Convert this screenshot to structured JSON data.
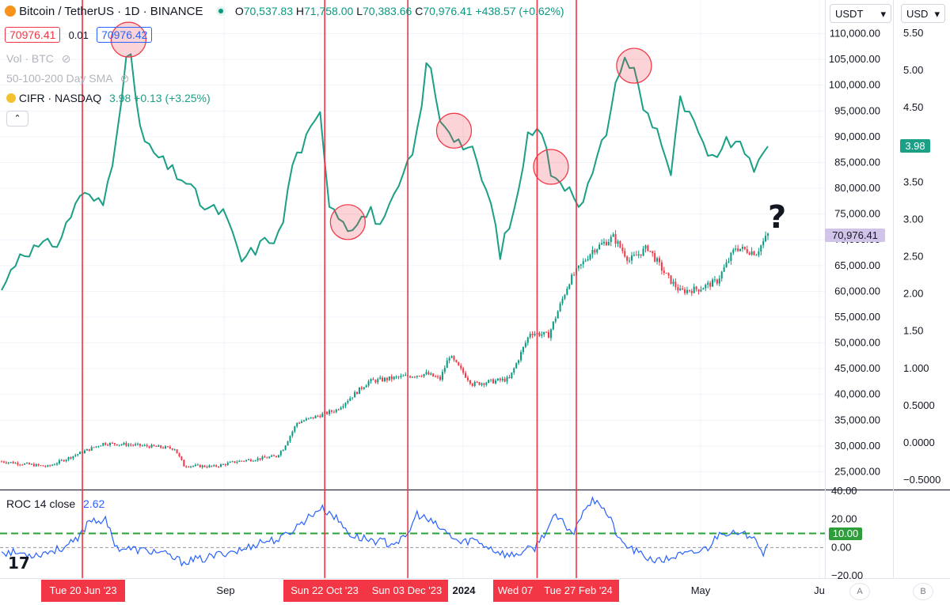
{
  "header": {
    "symbol": "Bitcoin / TetherUS · 1D · BINANCE",
    "o_label": "O",
    "o_value": "70,537.83",
    "h_label": "H",
    "h_value": "71,758.00",
    "l_label": "L",
    "l_value": "70,383.66",
    "c_label": "C",
    "c_value": "70,976.41",
    "change": "+438.57 (+0.62%)",
    "bid": "70976.41",
    "spread": "0.01",
    "ask": "70976.42",
    "vol_label": "Vol · BTC",
    "sma_label": "50-100-200 Day SMA",
    "cifr_label": "CIFR · NASDAQ",
    "cifr_value": "3.98",
    "cifr_change": "+0.13 (+3.25%)"
  },
  "axis_controls": {
    "currency": "USDT",
    "right_currency": "USD"
  },
  "price_badge": "70,976.41",
  "cifr_badge": "3.98",
  "roc": {
    "label": "ROC 14 close",
    "value": "2.62",
    "level_badge": "10.00",
    "level": 10
  },
  "question_mark": "?",
  "bottom_buttons": {
    "a": "A",
    "b": "B"
  },
  "colors": {
    "up": "#089981",
    "down": "#f23645",
    "cifr": "#1b9f85",
    "roc": "#2962ff",
    "marker": "#f23645",
    "level": "#2e9e3a"
  },
  "chart_data": {
    "type": "line",
    "title": "Bitcoin / TetherUS · 1D · BINANCE",
    "left_axis": {
      "ticks": [
        "110,000.00",
        "105,000.00",
        "100,000.00",
        "95,000.00",
        "90,000.00",
        "85,000.00",
        "80,000.00",
        "75,000.00",
        "70,000.00",
        "65,000.00",
        "60,000.00",
        "55,000.00",
        "50,000.00",
        "45,000.00",
        "40,000.00",
        "35,000.00",
        "30,000.00",
        "25,000.00"
      ],
      "range": [
        22700,
        112500
      ]
    },
    "right_axis": {
      "ticks": [
        "5.50",
        "5.00",
        "4.50",
        "4.00",
        "3.50",
        "3.00",
        "2.50",
        "2.00",
        "1.50",
        "1.000",
        "0.5000",
        "0.0000",
        "−0.5000"
      ],
      "range": [
        -0.5,
        5.5
      ]
    },
    "roc_axis": {
      "ticks": [
        "40.00",
        "20.00",
        "0.00",
        "−20.00"
      ],
      "range": [
        -20,
        40
      ]
    },
    "time_labels": [
      "Sep",
      "2024",
      "May",
      "Ju"
    ],
    "markers": [
      "Tue 20 Jun '23",
      "Sun 22 Oct '23",
      "Sun 03 Dec '23",
      "Wed 07",
      "Tue 27 Feb '24"
    ],
    "btc_anchors": [
      [
        0,
        27000
      ],
      [
        20,
        26000
      ],
      [
        44,
        30500
      ],
      [
        54,
        30300
      ],
      [
        68,
        29800
      ],
      [
        75,
        29500
      ],
      [
        79,
        26200
      ],
      [
        92,
        26000
      ],
      [
        102,
        27000
      ],
      [
        119,
        28000
      ],
      [
        122,
        29500
      ],
      [
        128,
        34500
      ],
      [
        145,
        37000
      ],
      [
        159,
        42500
      ],
      [
        175,
        43500
      ],
      [
        184,
        44000
      ],
      [
        190,
        43000
      ],
      [
        194,
        47500
      ],
      [
        204,
        42000
      ],
      [
        220,
        43000
      ],
      [
        229,
        52000
      ],
      [
        237,
        51500
      ],
      [
        246,
        62000
      ],
      [
        256,
        68000
      ],
      [
        265,
        70500
      ],
      [
        272,
        66000
      ],
      [
        280,
        68500
      ],
      [
        288,
        63000
      ],
      [
        294,
        60000
      ],
      [
        302,
        60500
      ],
      [
        310,
        62000
      ],
      [
        318,
        68500
      ],
      [
        327,
        67500
      ],
      [
        332,
        70976
      ]
    ],
    "cifr_anchors": [
      [
        0,
        2.05
      ],
      [
        8,
        2.55
      ],
      [
        25,
        2.7
      ],
      [
        34,
        3.35
      ],
      [
        44,
        3.2
      ],
      [
        48,
        3.8
      ],
      [
        55,
        5.35
      ],
      [
        61,
        4.05
      ],
      [
        72,
        3.7
      ],
      [
        80,
        3.5
      ],
      [
        88,
        3.15
      ],
      [
        96,
        3.1
      ],
      [
        104,
        2.45
      ],
      [
        114,
        2.7
      ],
      [
        121,
        2.8
      ],
      [
        126,
        3.75
      ],
      [
        138,
        4.4
      ],
      [
        142,
        3.25
      ],
      [
        150,
        2.9
      ],
      [
        160,
        3.1
      ],
      [
        165,
        2.9
      ],
      [
        179,
        3.95
      ],
      [
        185,
        5.25
      ],
      [
        189,
        4.4
      ],
      [
        198,
        4.05
      ],
      [
        204,
        3.9
      ],
      [
        212,
        3.2
      ],
      [
        216,
        2.55
      ],
      [
        222,
        3.1
      ],
      [
        228,
        4.1
      ],
      [
        233,
        4.35
      ],
      [
        239,
        3.5
      ],
      [
        246,
        3.45
      ],
      [
        251,
        3.2
      ],
      [
        256,
        3.6
      ],
      [
        262,
        4.2
      ],
      [
        269,
        5.2
      ],
      [
        274,
        5.0
      ],
      [
        278,
        4.5
      ],
      [
        285,
        4.15
      ],
      [
        290,
        3.6
      ],
      [
        294,
        4.6
      ],
      [
        302,
        4.15
      ],
      [
        306,
        3.78
      ],
      [
        315,
        4.05
      ],
      [
        323,
        3.9
      ],
      [
        327,
        3.65
      ],
      [
        332,
        3.98
      ]
    ],
    "roc_anchors": [
      [
        0,
        -3
      ],
      [
        15,
        -5
      ],
      [
        25,
        -1
      ],
      [
        33,
        5
      ],
      [
        38,
        20
      ],
      [
        45,
        19
      ],
      [
        50,
        0
      ],
      [
        60,
        -2
      ],
      [
        68,
        -3
      ],
      [
        78,
        -10
      ],
      [
        88,
        -8
      ],
      [
        98,
        -3
      ],
      [
        104,
        -2
      ],
      [
        112,
        4
      ],
      [
        121,
        6
      ],
      [
        138,
        28
      ],
      [
        143,
        24
      ],
      [
        152,
        8
      ],
      [
        168,
        3
      ],
      [
        175,
        6
      ],
      [
        180,
        24
      ],
      [
        188,
        16
      ],
      [
        199,
        3
      ],
      [
        204,
        6
      ],
      [
        214,
        -2
      ],
      [
        220,
        -6
      ],
      [
        226,
        -3
      ],
      [
        231,
        0
      ],
      [
        240,
        22
      ],
      [
        248,
        10
      ],
      [
        252,
        28
      ],
      [
        258,
        35
      ],
      [
        264,
        19
      ],
      [
        268,
        4
      ],
      [
        274,
        -2
      ],
      [
        278,
        -6
      ],
      [
        285,
        -10
      ],
      [
        292,
        -6
      ],
      [
        300,
        -4
      ],
      [
        306,
        0
      ],
      [
        312,
        12
      ],
      [
        320,
        8
      ],
      [
        326,
        10
      ],
      [
        330,
        -4
      ],
      [
        332,
        2.62
      ]
    ],
    "marker_days": [
      35,
      140,
      176,
      232,
      249
    ],
    "peak_days": [
      55,
      150,
      196,
      238,
      274
    ],
    "x_range": [
      0,
      355
    ]
  }
}
